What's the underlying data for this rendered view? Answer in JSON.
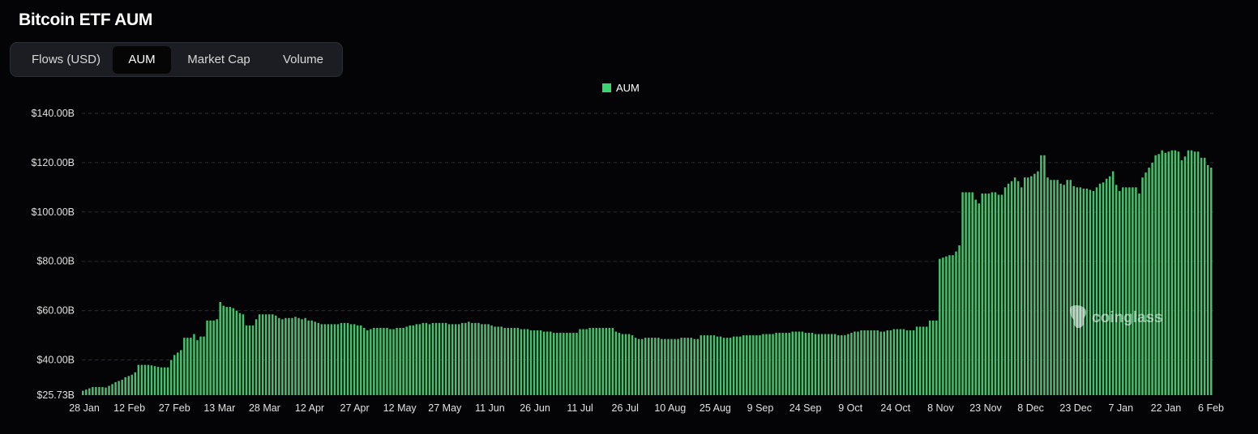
{
  "header": {
    "title": "Bitcoin ETF AUM"
  },
  "tabs": [
    {
      "label": "Flows (USD)",
      "active": false
    },
    {
      "label": "AUM",
      "active": true
    },
    {
      "label": "Market Cap",
      "active": false
    },
    {
      "label": "Volume",
      "active": false
    }
  ],
  "watermark": "coinglass",
  "colors": {
    "bar": "#45c06c",
    "legend": "#3ad475",
    "grid": "#2a2d33",
    "background": "#040406"
  },
  "chart_data": {
    "type": "bar",
    "title": "",
    "xlabel": "",
    "ylabel": "",
    "legend": [
      "AUM"
    ],
    "legend_position": "top-center",
    "grid": true,
    "ylim": [
      25.73,
      140
    ],
    "y_ticks": [
      "$140.00B",
      "$120.00B",
      "$100.00B",
      "$80.00B",
      "$60.00B",
      "$40.00B",
      "$25.73B"
    ],
    "x_ticks": [
      "28 Jan",
      "12 Feb",
      "27 Feb",
      "13 Mar",
      "28 Mar",
      "12 Apr",
      "27 Apr",
      "12 May",
      "27 May",
      "11 Jun",
      "26 Jun",
      "11 Jul",
      "26 Jul",
      "10 Aug",
      "25 Aug",
      "9 Sep",
      "24 Sep",
      "9 Oct",
      "24 Oct",
      "8 Nov",
      "23 Nov",
      "8 Dec",
      "23 Dec",
      "7 Jan",
      "22 Jan",
      "6 Feb"
    ],
    "unit": "USD billions",
    "series": [
      {
        "name": "AUM",
        "values": [
          27.5,
          28,
          28.5,
          29,
          29,
          29,
          29,
          28.8,
          29.5,
          30.2,
          31,
          31.5,
          32,
          33,
          33.5,
          34,
          35,
          38,
          38,
          38,
          38,
          37.8,
          37.5,
          37.2,
          37,
          37,
          37,
          40,
          42,
          43,
          44,
          49,
          49,
          49,
          50.5,
          48,
          49.5,
          49.5,
          56,
          56,
          56,
          56.5,
          63.5,
          62,
          61.5,
          61.5,
          61,
          60,
          59,
          58.5,
          54,
          54,
          54,
          56.5,
          58.5,
          58.5,
          58.5,
          58.5,
          58.5,
          58,
          57,
          56.5,
          57,
          57,
          57,
          57.5,
          57,
          56.5,
          57,
          56,
          56,
          55.5,
          55,
          54.5,
          54.5,
          54.5,
          54.5,
          54.5,
          54.5,
          55,
          55,
          55,
          54.5,
          54.5,
          54,
          54,
          53,
          52,
          52.5,
          53,
          53,
          53,
          53,
          53,
          52.5,
          52.5,
          53,
          53,
          53,
          53.5,
          54,
          54,
          54.5,
          54.5,
          55,
          55,
          54.5,
          55,
          55,
          55,
          55,
          55,
          54.5,
          54.5,
          54.5,
          54.5,
          55,
          55,
          55.5,
          55,
          55,
          55,
          54.5,
          54.5,
          54.5,
          54,
          53.5,
          53.5,
          53.5,
          53,
          53,
          53,
          53,
          53,
          52.5,
          52.5,
          52.5,
          52,
          52,
          52,
          52,
          51.5,
          51.5,
          51.5,
          51,
          51,
          51,
          51,
          51,
          51,
          51,
          51,
          52.5,
          52.5,
          52.5,
          53,
          53,
          53,
          53,
          53,
          53,
          53,
          53,
          51.5,
          51,
          50.5,
          50.5,
          50.5,
          50,
          49,
          48.5,
          48.5,
          49,
          49,
          49,
          49,
          49,
          48.5,
          48.5,
          48.5,
          48.5,
          48.5,
          48.5,
          49,
          49,
          49,
          49,
          48.5,
          48.5,
          50,
          50,
          50,
          50,
          50,
          49.5,
          49.5,
          49,
          49,
          49,
          49.5,
          49.5,
          49.5,
          50,
          50,
          50,
          50,
          50,
          50,
          50.5,
          50.5,
          50.5,
          50.5,
          51,
          51,
          51,
          51,
          51,
          51.5,
          51.5,
          51.5,
          51.5,
          51,
          51,
          51,
          50.5,
          50.5,
          50.5,
          50.5,
          50.5,
          50.5,
          50.5,
          50,
          50,
          50,
          50.5,
          51,
          51.5,
          51.5,
          52,
          52,
          52,
          52,
          52,
          52,
          51.5,
          51.5,
          52,
          52,
          52.5,
          52.5,
          52.5,
          52.5,
          52,
          52,
          52,
          53.5,
          53.5,
          53.5,
          53.5,
          56,
          56,
          56,
          81,
          81.5,
          82,
          82.5,
          82.5,
          84,
          86.5,
          108,
          108,
          108,
          108,
          105,
          103.5,
          107.5,
          107.5,
          107.5,
          108,
          108,
          107,
          107,
          110,
          111.5,
          112.5,
          114,
          112.5,
          110,
          114,
          114,
          114.5,
          115.5,
          116.5,
          123,
          123,
          114,
          113,
          113,
          113,
          111.5,
          111,
          113,
          113,
          110.5,
          110,
          110,
          109.5,
          109.5,
          109,
          108.5,
          110,
          111.5,
          112,
          113.5,
          114.5,
          116.5,
          111,
          108.5,
          110,
          110,
          110,
          110,
          110,
          107.5,
          114,
          116,
          118,
          120,
          123,
          123.5,
          125,
          124,
          124.5,
          125,
          125,
          124.5,
          121,
          122.5,
          125,
          125,
          124.5,
          124.5,
          122,
          122,
          119,
          118
        ]
      }
    ]
  }
}
